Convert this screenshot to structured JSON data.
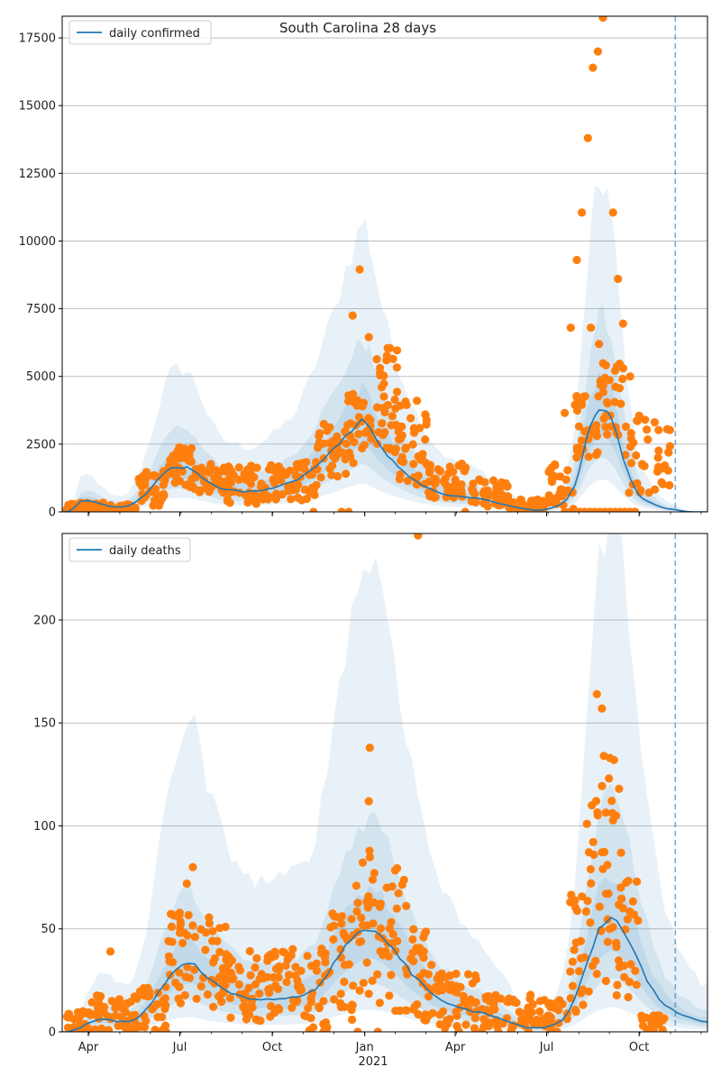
{
  "figure": {
    "title": "South Carolina 28 days",
    "year_label": "2021",
    "month_ticks": [
      {
        "label": "Apr",
        "day": 92
      },
      {
        "label": "Jul",
        "day": 183
      },
      {
        "label": "Oct",
        "day": 275
      },
      {
        "label": "Jan",
        "day": 367
      },
      {
        "label": "Apr",
        "day": 457
      },
      {
        "label": "Jul",
        "day": 548
      },
      {
        "label": "Oct",
        "day": 640
      }
    ]
  },
  "chart_data": [
    {
      "type": "line",
      "name": "daily-confirmed",
      "legend": "daily confirmed",
      "x_range": [
        "2020-03-06",
        "2021-12-08"
      ],
      "x_domain_days": [
        66,
        708
      ],
      "forecast_marker": "2021-11-06",
      "forecast_day": 676,
      "ylim": [
        0,
        18300
      ],
      "yticks": [
        0,
        2500,
        5000,
        7500,
        10000,
        12500,
        15000,
        17500
      ],
      "grid": "y",
      "legend_position": "top-left",
      "series_color": "#1f77b4",
      "points_color": "#ff7f0e",
      "model": {
        "x": [
          66,
          72,
          78,
          84,
          90,
          96,
          102,
          108,
          114,
          120,
          126,
          132,
          138,
          144,
          150,
          156,
          162,
          168,
          174,
          180,
          186,
          190,
          195,
          200,
          205,
          210,
          216,
          222,
          228,
          234,
          240,
          246,
          252,
          258,
          264,
          270,
          276,
          282,
          288,
          294,
          300,
          306,
          312,
          318,
          324,
          330,
          336,
          342,
          348,
          354,
          360,
          364,
          368,
          372,
          376,
          380,
          385,
          390,
          395,
          400,
          406,
          412,
          418,
          424,
          430,
          436,
          442,
          448,
          454,
          460,
          466,
          472,
          478,
          484,
          490,
          496,
          502,
          508,
          514,
          520,
          526,
          532,
          538,
          544,
          550,
          556,
          562,
          568,
          572,
          576,
          580,
          584,
          588,
          592,
          596,
          600,
          604,
          608,
          612,
          616,
          620,
          624,
          628,
          632,
          636,
          640,
          644,
          648,
          652,
          656,
          660,
          664,
          668,
          672,
          676,
          682,
          688,
          694,
          700,
          708
        ],
        "y": [
          0,
          10,
          150,
          380,
          430,
          400,
          330,
          260,
          200,
          180,
          180,
          230,
          330,
          500,
          700,
          950,
          1200,
          1450,
          1600,
          1650,
          1650,
          1620,
          1550,
          1450,
          1300,
          1150,
          1000,
          880,
          820,
          800,
          780,
          750,
          740,
          760,
          800,
          850,
          900,
          960,
          1030,
          1100,
          1200,
          1350,
          1520,
          1700,
          1900,
          2100,
          2300,
          2550,
          2800,
          3000,
          3200,
          3350,
          3300,
          3100,
          2850,
          2600,
          2350,
          2100,
          1900,
          1700,
          1500,
          1300,
          1150,
          1000,
          880,
          780,
          700,
          640,
          600,
          580,
          560,
          530,
          500,
          460,
          410,
          360,
          300,
          250,
          200,
          150,
          110,
          80,
          60,
          70,
          110,
          180,
          280,
          450,
          700,
          1000,
          1500,
          2100,
          2700,
          3200,
          3550,
          3750,
          3800,
          3700,
          3400,
          3000,
          2500,
          2000,
          1550,
          1150,
          850,
          620,
          480,
          400,
          330,
          260,
          200,
          150,
          120,
          100,
          80,
          40,
          10,
          0,
          0,
          0
        ]
      },
      "band_scale": {
        "outer": 3.2,
        "mid": 1.9,
        "inner": 1.35
      },
      "observed_clusters": [
        {
          "x0": 70,
          "x1": 110,
          "y0": 20,
          "y1": 350,
          "n": 45
        },
        {
          "x0": 110,
          "x1": 140,
          "y0": 0,
          "y1": 300,
          "n": 28
        },
        {
          "x0": 140,
          "x1": 170,
          "y0": 200,
          "y1": 1500,
          "n": 35
        },
        {
          "x0": 170,
          "x1": 195,
          "y0": 900,
          "y1": 2400,
          "n": 35
        },
        {
          "x0": 195,
          "x1": 230,
          "y0": 700,
          "y1": 1800,
          "n": 40
        },
        {
          "x0": 230,
          "x1": 270,
          "y0": 300,
          "y1": 1800,
          "n": 45
        },
        {
          "x0": 270,
          "x1": 320,
          "y0": 400,
          "y1": 1900,
          "n": 55
        },
        {
          "x0": 320,
          "x1": 350,
          "y0": 1200,
          "y1": 3300,
          "n": 35
        },
        {
          "x0": 350,
          "x1": 375,
          "y0": 1800,
          "y1": 4500,
          "n": 30
        },
        {
          "x0": 375,
          "x1": 400,
          "y0": 2000,
          "y1": 6200,
          "n": 35
        },
        {
          "x0": 400,
          "x1": 430,
          "y0": 1000,
          "y1": 4200,
          "n": 40
        },
        {
          "x0": 430,
          "x1": 470,
          "y0": 500,
          "y1": 1800,
          "n": 45
        },
        {
          "x0": 470,
          "x1": 510,
          "y0": 200,
          "y1": 1200,
          "n": 45
        },
        {
          "x0": 510,
          "x1": 545,
          "y0": 0,
          "y1": 500,
          "n": 35
        },
        {
          "x0": 545,
          "x1": 575,
          "y0": 100,
          "y1": 1900,
          "n": 30
        },
        {
          "x0": 575,
          "x1": 600,
          "y0": 2000,
          "y1": 4600,
          "n": 30
        },
        {
          "x0": 600,
          "x1": 625,
          "y0": 2800,
          "y1": 5500,
          "n": 30
        },
        {
          "x0": 625,
          "x1": 672,
          "y0": 700,
          "y1": 3500,
          "n": 40
        }
      ],
      "observed_points": [
        {
          "x": 355,
          "y": 7250
        },
        {
          "x": 362,
          "y": 8950
        },
        {
          "x": 371,
          "y": 6450
        },
        {
          "x": 392,
          "y": 6050
        },
        {
          "x": 566,
          "y": 3650
        },
        {
          "x": 572,
          "y": 6800
        },
        {
          "x": 578,
          "y": 9300
        },
        {
          "x": 583,
          "y": 11050
        },
        {
          "x": 589,
          "y": 13800
        },
        {
          "x": 594,
          "y": 16400
        },
        {
          "x": 599,
          "y": 17000
        },
        {
          "x": 604,
          "y": 18250
        },
        {
          "x": 614,
          "y": 11050
        },
        {
          "x": 619,
          "y": 8600
        },
        {
          "x": 624,
          "y": 6950
        },
        {
          "x": 631,
          "y": 5000
        },
        {
          "x": 592,
          "y": 6800
        },
        {
          "x": 600,
          "y": 6200
        },
        {
          "x": 606,
          "y": 4950
        },
        {
          "x": 640,
          "y": 3550
        },
        {
          "x": 344,
          "y": 0
        },
        {
          "x": 351,
          "y": 0
        },
        {
          "x": 467,
          "y": 0
        },
        {
          "x": 316,
          "y": 0
        },
        {
          "x": 566,
          "y": 0
        },
        {
          "x": 571,
          "y": 0
        },
        {
          "x": 576,
          "y": 0
        },
        {
          "x": 581,
          "y": 0
        },
        {
          "x": 586,
          "y": 0
        },
        {
          "x": 591,
          "y": 0
        },
        {
          "x": 596,
          "y": 0
        },
        {
          "x": 601,
          "y": 0
        },
        {
          "x": 606,
          "y": 0
        },
        {
          "x": 611,
          "y": 0
        },
        {
          "x": 616,
          "y": 0
        },
        {
          "x": 621,
          "y": 0
        },
        {
          "x": 626,
          "y": 0
        },
        {
          "x": 631,
          "y": 0
        },
        {
          "x": 636,
          "y": 0
        }
      ]
    },
    {
      "type": "line",
      "name": "daily-deaths",
      "legend": "daily deaths",
      "x_range": [
        "2020-03-06",
        "2021-12-08"
      ],
      "x_domain_days": [
        66,
        708
      ],
      "forecast_marker": "2021-11-06",
      "forecast_day": 676,
      "ylim": [
        0,
        242
      ],
      "yticks": [
        0,
        50,
        100,
        150,
        200
      ],
      "grid": "y",
      "legend_position": "top-left",
      "series_color": "#1f77b4",
      "points_color": "#ff7f0e",
      "model": {
        "x": [
          66,
          72,
          78,
          84,
          90,
          96,
          102,
          108,
          114,
          120,
          126,
          132,
          138,
          144,
          150,
          156,
          162,
          168,
          174,
          180,
          186,
          192,
          198,
          204,
          210,
          216,
          222,
          228,
          234,
          240,
          246,
          252,
          258,
          264,
          270,
          276,
          282,
          288,
          294,
          300,
          306,
          312,
          318,
          324,
          330,
          336,
          342,
          348,
          354,
          360,
          366,
          372,
          378,
          384,
          390,
          396,
          402,
          408,
          414,
          420,
          426,
          432,
          438,
          444,
          450,
          456,
          462,
          468,
          474,
          480,
          486,
          492,
          498,
          504,
          510,
          516,
          522,
          528,
          534,
          540,
          546,
          552,
          558,
          564,
          570,
          576,
          582,
          588,
          594,
          600,
          606,
          612,
          618,
          624,
          630,
          636,
          642,
          648,
          654,
          660,
          666,
          672,
          678,
          684,
          690,
          696,
          702,
          708
        ],
        "y": [
          0,
          0,
          1,
          2,
          4,
          5,
          6,
          6,
          6,
          5,
          5,
          5,
          6,
          8,
          11,
          15,
          19,
          23,
          27,
          30,
          32,
          33,
          32,
          29,
          26,
          24,
          22,
          20,
          19,
          18,
          17,
          16,
          16,
          16,
          16,
          16,
          16,
          16,
          17,
          17,
          18,
          19,
          21,
          24,
          28,
          33,
          37,
          41,
          44,
          47,
          49,
          50,
          49,
          47,
          44,
          40,
          36,
          32,
          28,
          25,
          22,
          19,
          17,
          15,
          14,
          13,
          12,
          11,
          10,
          10,
          9,
          8,
          7,
          6,
          5,
          4,
          3,
          2,
          2,
          2,
          2,
          3,
          4,
          6,
          10,
          16,
          25,
          34,
          42,
          49,
          53,
          55,
          54,
          50,
          44,
          38,
          31,
          25,
          20,
          16,
          13,
          11,
          9,
          8,
          7,
          6,
          5,
          5
        ]
      },
      "band_scale": {
        "outer": 4.6,
        "mid": 2.1,
        "inner": 1.4
      },
      "observed_clusters": [
        {
          "x0": 70,
          "x1": 95,
          "y0": 0,
          "y1": 10,
          "n": 25
        },
        {
          "x0": 95,
          "x1": 140,
          "y0": 0,
          "y1": 18,
          "n": 45
        },
        {
          "x0": 140,
          "x1": 170,
          "y0": 0,
          "y1": 22,
          "n": 30
        },
        {
          "x0": 170,
          "x1": 195,
          "y0": 10,
          "y1": 58,
          "n": 30
        },
        {
          "x0": 195,
          "x1": 230,
          "y0": 12,
          "y1": 58,
          "n": 40
        },
        {
          "x0": 230,
          "x1": 280,
          "y0": 2,
          "y1": 40,
          "n": 55
        },
        {
          "x0": 280,
          "x1": 330,
          "y0": 0,
          "y1": 42,
          "n": 55
        },
        {
          "x0": 330,
          "x1": 355,
          "y0": 5,
          "y1": 58,
          "n": 30
        },
        {
          "x0": 355,
          "x1": 380,
          "y0": 15,
          "y1": 90,
          "n": 30
        },
        {
          "x0": 380,
          "x1": 410,
          "y0": 10,
          "y1": 80,
          "n": 35
        },
        {
          "x0": 410,
          "x1": 440,
          "y0": 5,
          "y1": 50,
          "n": 35
        },
        {
          "x0": 440,
          "x1": 480,
          "y0": 0,
          "y1": 30,
          "n": 45
        },
        {
          "x0": 480,
          "x1": 540,
          "y0": 0,
          "y1": 18,
          "n": 55
        },
        {
          "x0": 540,
          "x1": 570,
          "y0": 0,
          "y1": 16,
          "n": 30
        },
        {
          "x0": 570,
          "x1": 590,
          "y0": 8,
          "y1": 70,
          "n": 25
        },
        {
          "x0": 590,
          "x1": 615,
          "y0": 20,
          "y1": 120,
          "n": 30
        },
        {
          "x0": 615,
          "x1": 640,
          "y0": 15,
          "y1": 75,
          "n": 25
        },
        {
          "x0": 640,
          "x1": 665,
          "y0": 0,
          "y1": 8,
          "n": 20
        }
      ],
      "observed_points": [
        {
          "x": 114,
          "y": 39
        },
        {
          "x": 420,
          "y": 241
        },
        {
          "x": 372,
          "y": 138
        },
        {
          "x": 371,
          "y": 112
        },
        {
          "x": 196,
          "y": 80
        },
        {
          "x": 190,
          "y": 72
        },
        {
          "x": 598,
          "y": 164
        },
        {
          "x": 603,
          "y": 157
        },
        {
          "x": 605,
          "y": 134
        },
        {
          "x": 611,
          "y": 133
        },
        {
          "x": 615,
          "y": 132
        },
        {
          "x": 610,
          "y": 123
        },
        {
          "x": 620,
          "y": 118
        },
        {
          "x": 593,
          "y": 110
        },
        {
          "x": 588,
          "y": 101
        },
        {
          "x": 617,
          "y": 105
        },
        {
          "x": 595,
          "y": 86
        },
        {
          "x": 622,
          "y": 87
        },
        {
          "x": 624,
          "y": 60
        },
        {
          "x": 326,
          "y": 0
        },
        {
          "x": 360,
          "y": 0
        },
        {
          "x": 380,
          "y": 0
        },
        {
          "x": 500,
          "y": 0
        },
        {
          "x": 530,
          "y": 0
        }
      ]
    }
  ]
}
